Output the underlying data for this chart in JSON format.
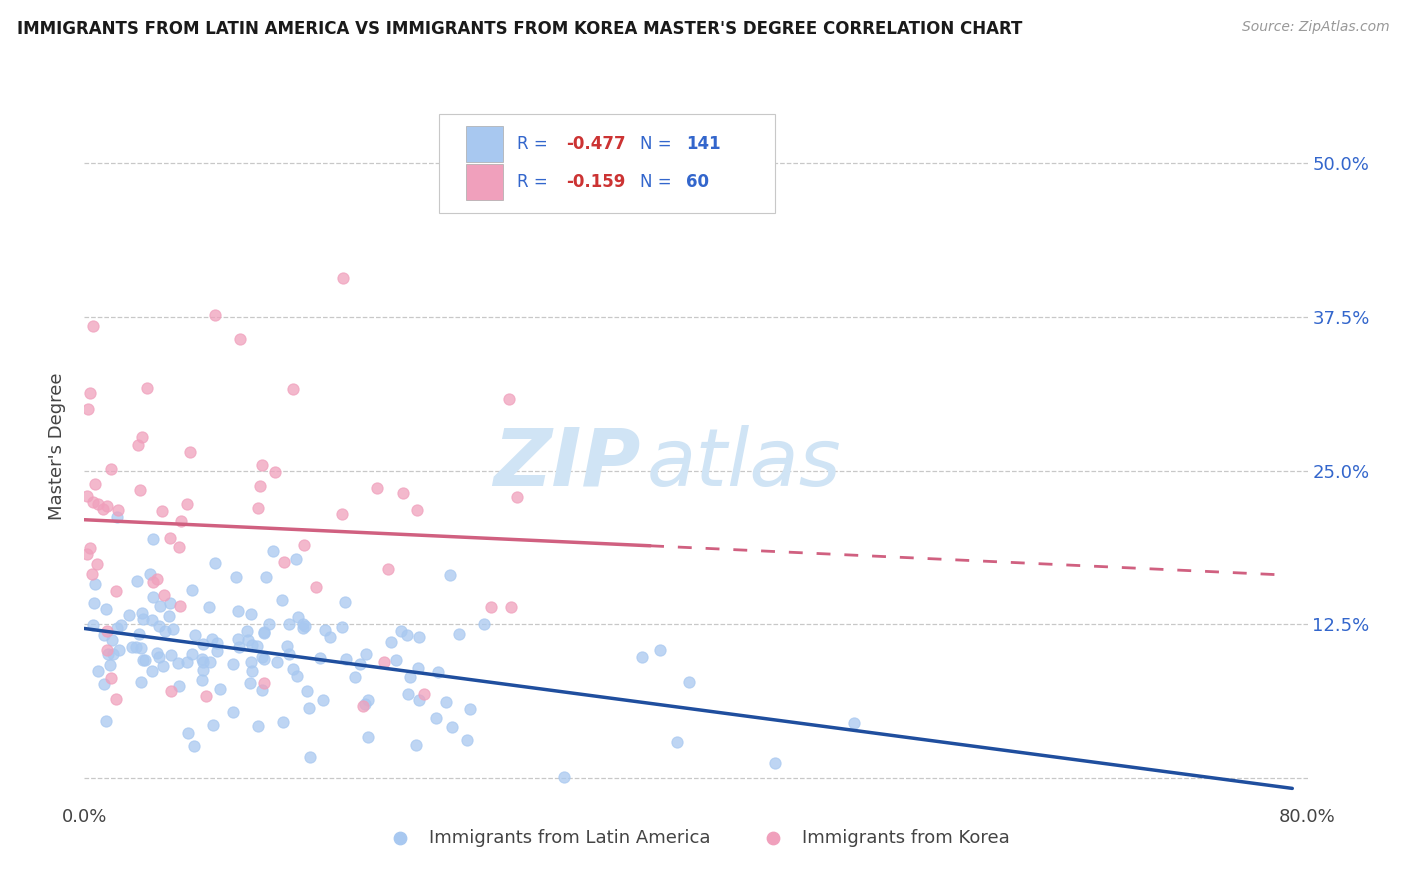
{
  "title": "IMMIGRANTS FROM LATIN AMERICA VS IMMIGRANTS FROM KOREA MASTER'S DEGREE CORRELATION CHART",
  "source_text": "Source: ZipAtlas.com",
  "ylabel": "Master's Degree",
  "xlim": [
    0.0,
    0.8
  ],
  "ylim": [
    -0.02,
    0.56
  ],
  "ytick_positions": [
    0.0,
    0.125,
    0.25,
    0.375,
    0.5
  ],
  "ytick_labels": [
    "",
    "12.5%",
    "25.0%",
    "37.5%",
    "50.0%"
  ],
  "xtick_positions": [
    0.0,
    0.8
  ],
  "xtick_labels": [
    "0.0%",
    "80.0%"
  ],
  "legend_r1_val": "-0.477",
  "legend_n1_val": "141",
  "legend_r2_val": "-0.159",
  "legend_n2_val": "60",
  "color_latin": "#a8c8f0",
  "color_korea": "#f0a0bc",
  "color_latin_line": "#1f4e9e",
  "color_korea_line": "#d06080",
  "color_blue_text": "#3366cc",
  "color_red_val": "#cc3333",
  "watermark_zip": "ZIP",
  "watermark_atlas": "atlas",
  "watermark_color": "#d0e4f5",
  "background_color": "#ffffff",
  "grid_color": "#c8c8c8",
  "bottom_legend_1": "Immigrants from Latin America",
  "bottom_legend_2": "Immigrants from Korea",
  "latin_r": -0.477,
  "latin_n": 141,
  "korea_r": -0.159,
  "korea_n": 60,
  "korea_line_solid_end": 0.37,
  "korea_line_dashed_start": 0.37,
  "korea_line_end": 0.78
}
